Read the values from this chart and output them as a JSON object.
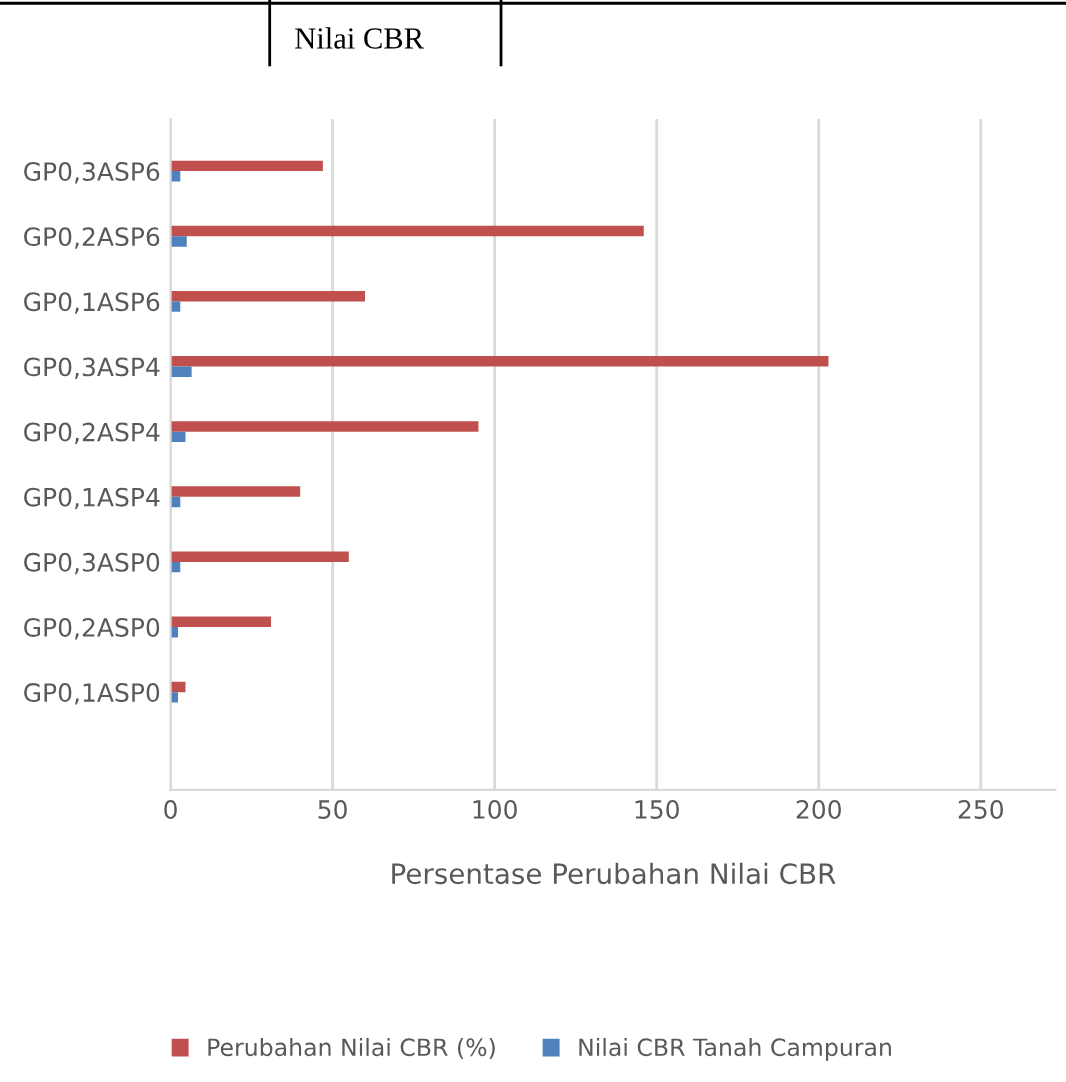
{
  "chart_data": {
    "type": "bar",
    "orientation": "horizontal",
    "title": "Nilai CBR",
    "xlabel": "Persentase Perubahan Nilai CBR",
    "categories": [
      "GP0,3ASP6",
      "GP0,2ASP6",
      "GP0,1ASP6",
      "GP0,3ASP4",
      "GP0,2ASP4",
      "GP0,1ASP4",
      "GP0,3ASP0",
      "GP0,2ASP0",
      "GP0,1ASP0"
    ],
    "series": [
      {
        "name": "Perubahan Nilai CBR (%)",
        "color": "#c0504d",
        "values": [
          47,
          146,
          60,
          203,
          95,
          40,
          55,
          31,
          4.6
        ]
      },
      {
        "name": "Nilai CBR Tanah Campuran",
        "color": "#4f81bd",
        "values": [
          3,
          5,
          3,
          6.5,
          4.6,
          3,
          3,
          2.3,
          2.3
        ]
      }
    ],
    "xlim": [
      0,
      273
    ],
    "xticks": [
      0,
      50,
      100,
      150,
      200,
      250
    ],
    "grid": "x",
    "legend": "bottom"
  }
}
